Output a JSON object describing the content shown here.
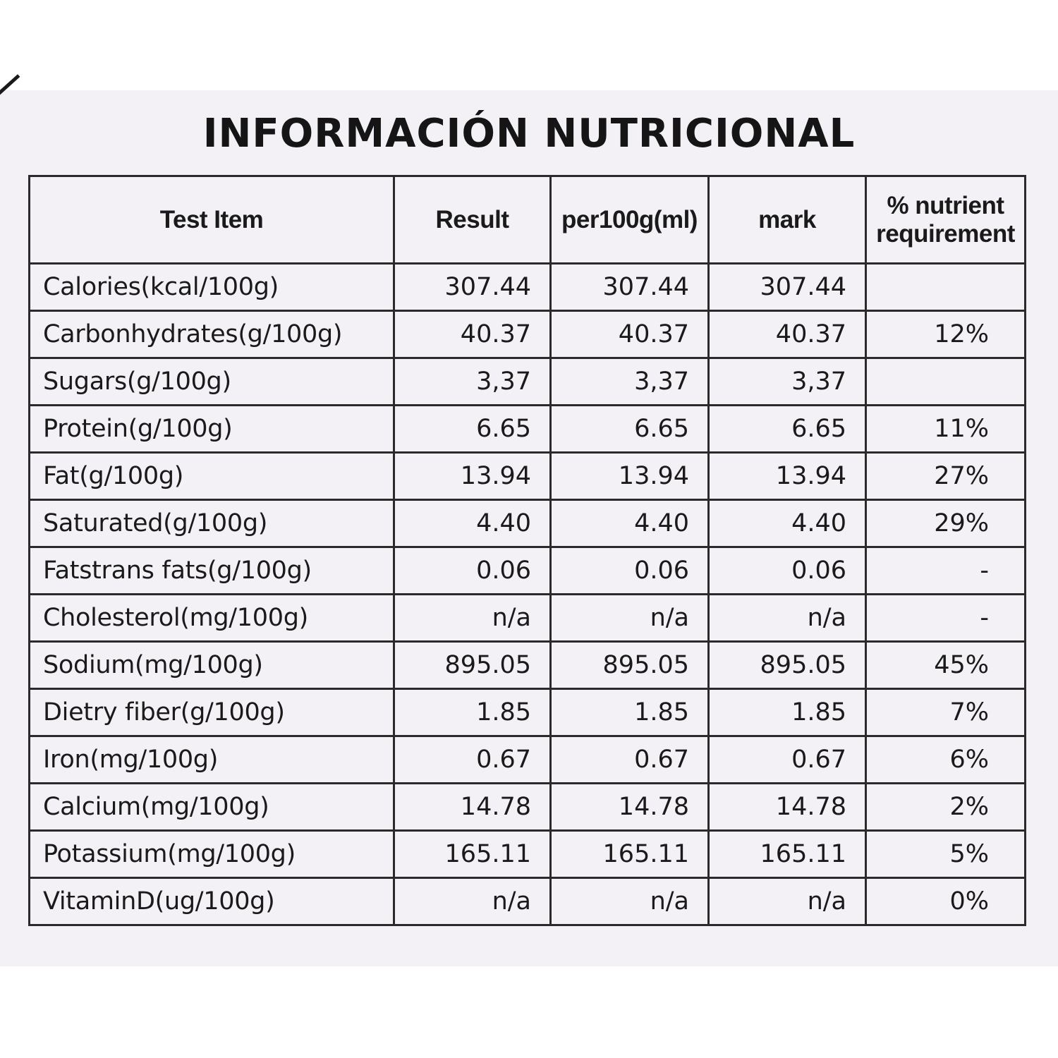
{
  "title": "INFORMACIÓN NUTRICIONAL",
  "table": {
    "headers": [
      "Test Item",
      "Result",
      "per100g(ml)",
      "mark",
      "% nutrient requirement"
    ],
    "rows": [
      {
        "item": "Calories(kcal/100g)",
        "result": "307.44",
        "per100": "307.44",
        "mark": "307.44",
        "pct": ""
      },
      {
        "item": "Carbonhydrates(g/100g)",
        "result": "40.37",
        "per100": "40.37",
        "mark": "40.37",
        "pct": "12%"
      },
      {
        "item": "Sugars(g/100g)",
        "result": "3,37",
        "per100": "3,37",
        "mark": "3,37",
        "pct": ""
      },
      {
        "item": "Protein(g/100g)",
        "result": "6.65",
        "per100": "6.65",
        "mark": "6.65",
        "pct": "11%"
      },
      {
        "item": "Fat(g/100g)",
        "result": "13.94",
        "per100": "13.94",
        "mark": "13.94",
        "pct": "27%"
      },
      {
        "item": "Saturated(g/100g)",
        "result": "4.40",
        "per100": "4.40",
        "mark": "4.40",
        "pct": "29%"
      },
      {
        "item": "Fatstrans fats(g/100g)",
        "result": "0.06",
        "per100": "0.06",
        "mark": "0.06",
        "pct": "-"
      },
      {
        "item": "Cholesterol(mg/100g)",
        "result": "n/a",
        "per100": "n/a",
        "mark": "n/a",
        "pct": "-"
      },
      {
        "item": "Sodium(mg/100g)",
        "result": "895.05",
        "per100": "895.05",
        "mark": "895.05",
        "pct": "45%"
      },
      {
        "item": "Dietry fiber(g/100g)",
        "result": "1.85",
        "per100": "1.85",
        "mark": "1.85",
        "pct": "7%"
      },
      {
        "item": "Iron(mg/100g)",
        "result": "0.67",
        "per100": "0.67",
        "mark": "0.67",
        "pct": "6%"
      },
      {
        "item": "Calcium(mg/100g)",
        "result": "14.78",
        "per100": "14.78",
        "mark": "14.78",
        "pct": "2%"
      },
      {
        "item": "Potassium(mg/100g)",
        "result": "165.11",
        "per100": "165.11",
        "mark": "165.11",
        "pct": "5%"
      },
      {
        "item": "VitaminD(ug/100g)",
        "result": "n/a",
        "per100": "n/a",
        "mark": "n/a",
        "pct": "0%"
      }
    ]
  },
  "colors": {
    "panel_background": "#f3f1f6",
    "ink": "#1a1a1a"
  }
}
